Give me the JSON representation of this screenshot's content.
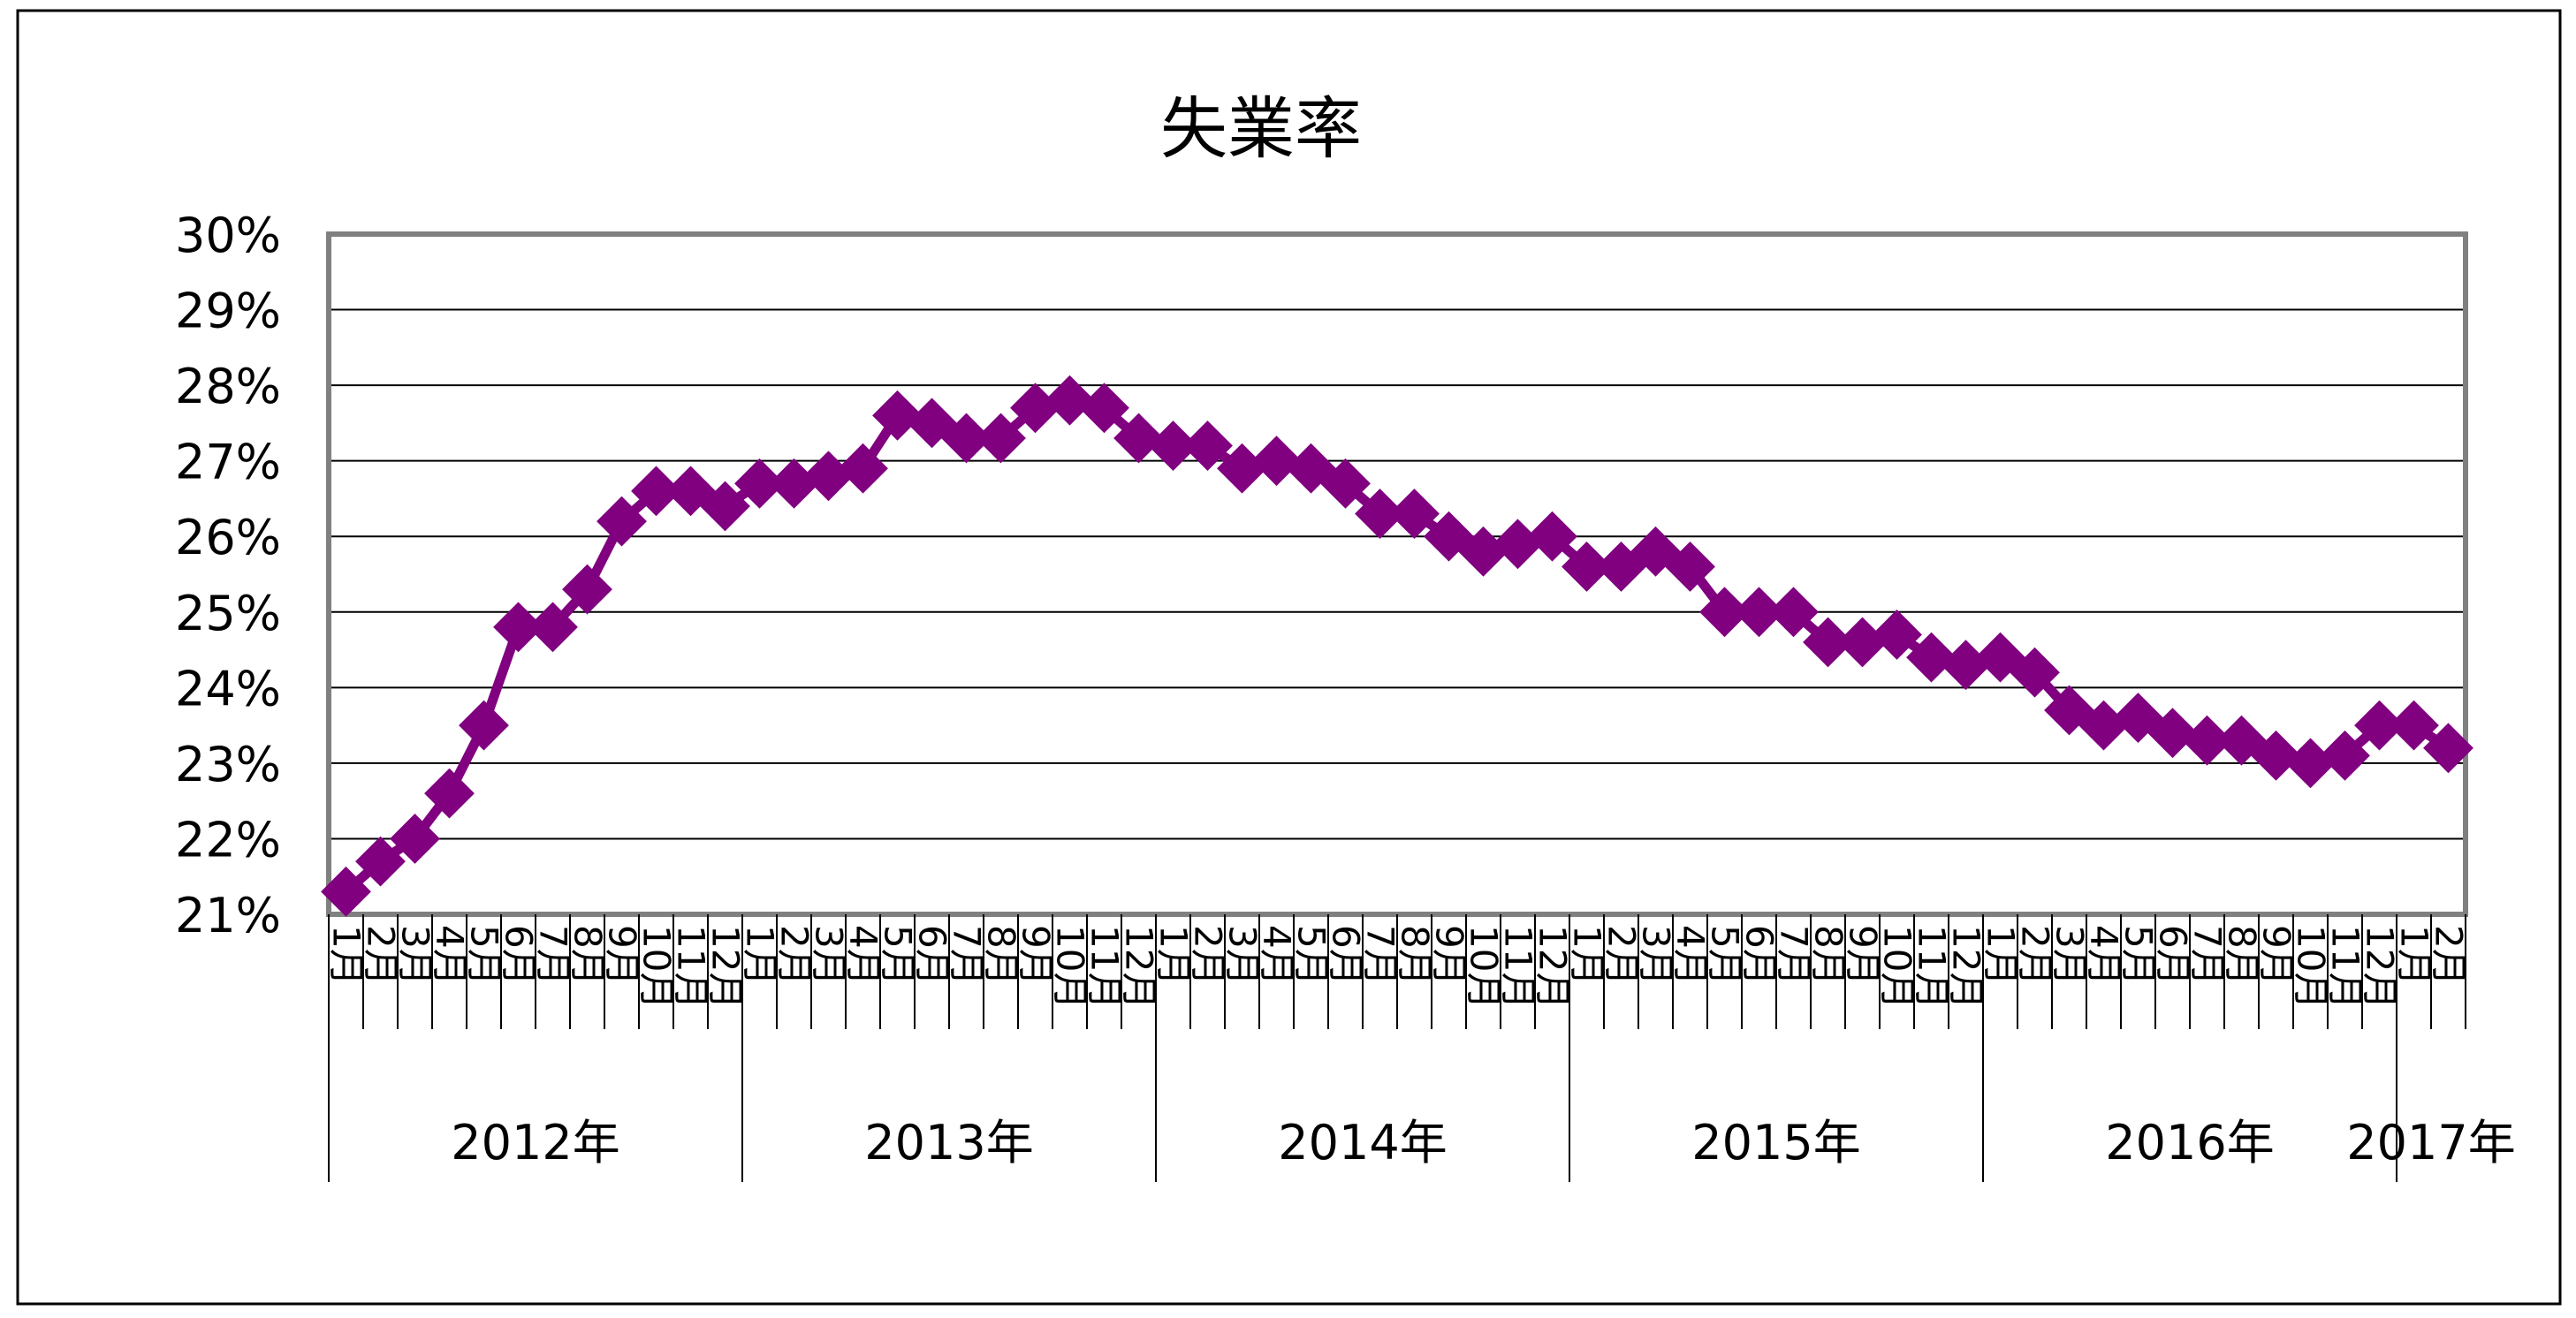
{
  "chart_data": {
    "type": "line",
    "title": "失業率",
    "xlabel": "",
    "ylabel": "",
    "ylim": [
      0.21,
      0.3
    ],
    "yticks": [
      "21%",
      "22%",
      "23%",
      "24%",
      "25%",
      "26%",
      "27%",
      "28%",
      "29%",
      "30%"
    ],
    "grid": true,
    "legend": "none",
    "colors": {
      "series": "#800080",
      "grid": "#000000",
      "frame": "#808080"
    },
    "months": [
      "1月",
      "2月",
      "3月",
      "4月",
      "5月",
      "6月",
      "7月",
      "8月",
      "9月",
      "10月",
      "11月",
      "12月",
      "1月",
      "2月",
      "3月",
      "4月",
      "5月",
      "6月",
      "7月",
      "8月",
      "9月",
      "10月",
      "11月",
      "12月",
      "1月",
      "2月",
      "3月",
      "4月",
      "5月",
      "6月",
      "7月",
      "8月",
      "9月",
      "10月",
      "11月",
      "12月",
      "1月",
      "2月",
      "3月",
      "4月",
      "5月",
      "6月",
      "7月",
      "8月",
      "9月",
      "10月",
      "11月",
      "12月",
      "1月",
      "2月",
      "3月",
      "4月",
      "5月",
      "6月",
      "7月",
      "8月",
      "9月",
      "10月",
      "11月",
      "12月",
      "1月",
      "2月"
    ],
    "years": [
      {
        "label": "2012年",
        "count": 12
      },
      {
        "label": "2013年",
        "count": 12
      },
      {
        "label": "2014年",
        "count": 12
      },
      {
        "label": "2015年",
        "count": 12
      },
      {
        "label": "2016年",
        "count": 12
      },
      {
        "label": "2017年",
        "count": 2
      }
    ],
    "series": [
      {
        "values": [
          0.213,
          0.217,
          0.22,
          0.226,
          0.235,
          0.248,
          0.248,
          0.253,
          0.262,
          0.266,
          0.266,
          0.264,
          0.267,
          0.267,
          0.268,
          0.269,
          0.276,
          0.275,
          0.273,
          0.273,
          0.277,
          0.278,
          0.277,
          0.273,
          0.272,
          0.272,
          0.269,
          0.27,
          0.269,
          0.267,
          0.263,
          0.263,
          0.26,
          0.258,
          0.259,
          0.26,
          0.256,
          0.256,
          0.258,
          0.256,
          0.25,
          0.25,
          0.25,
          0.246,
          0.246,
          0.247,
          0.244,
          0.243,
          0.244,
          0.242,
          0.237,
          0.235,
          0.236,
          0.234,
          0.233,
          0.233,
          0.231,
          0.23,
          0.231,
          0.235,
          0.235,
          0.232
        ]
      }
    ]
  }
}
